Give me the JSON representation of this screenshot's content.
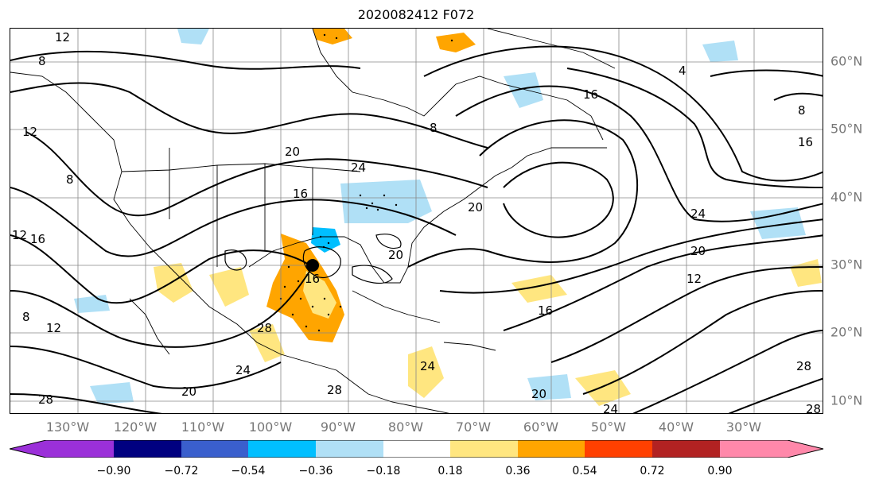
{
  "title": "2020082412 F072",
  "lon_labels": [
    "130°W",
    "120°W",
    "110°W",
    "100°W",
    "90°W",
    "80°W",
    "70°W",
    "60°W",
    "50°W",
    "40°W",
    "30°W"
  ],
  "lat_labels": [
    "60°N",
    "50°N",
    "40°N",
    "30°N",
    "20°N",
    "10°N"
  ],
  "colorbar": {
    "labels": [
      "−0.90",
      "−0.72",
      "−0.54",
      "−0.36",
      "−0.18",
      "0.18",
      "0.36",
      "0.54",
      "0.72",
      "0.90"
    ],
    "colors": [
      "#9b30d9",
      "#000080",
      "#3a5fcd",
      "#00bfff",
      "#b0e0f6",
      "#ffffff",
      "#ffe680",
      "#ffa500",
      "#ff4000",
      "#b22222",
      "#ff88aa"
    ]
  },
  "contour_labels": [
    "12",
    "8",
    "12",
    "8",
    "16",
    "12",
    "8",
    "12",
    "20",
    "24",
    "16",
    "20",
    "16",
    "28",
    "24",
    "28",
    "20",
    "24",
    "20",
    "28",
    "16",
    "4",
    "16",
    "8",
    "20",
    "24",
    "12",
    "8",
    "16",
    "20",
    "28",
    "24",
    "28"
  ],
  "colors": {
    "land_outline": "#000000",
    "grid": "#888888",
    "axis_text": "#777777"
  }
}
